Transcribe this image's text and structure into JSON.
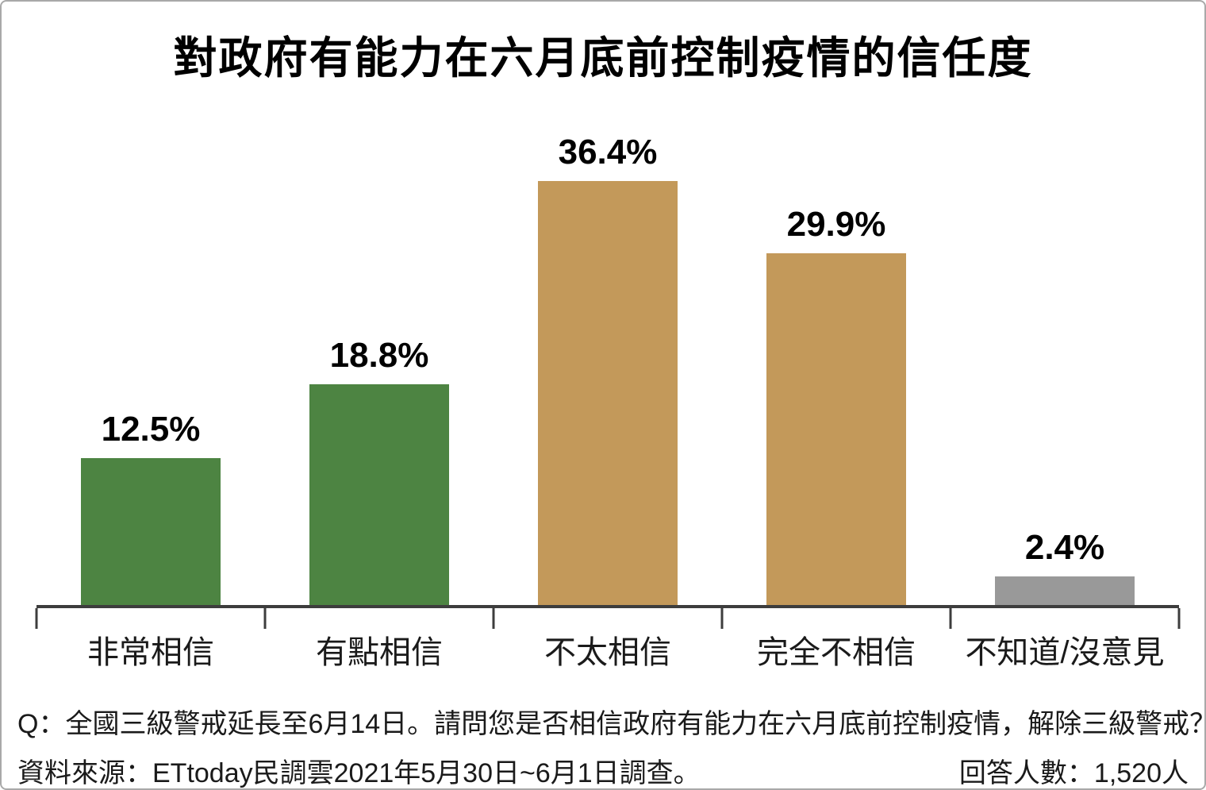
{
  "title": "對政府有能力在六月底前控制疫情的信任度",
  "chart_data": {
    "type": "bar",
    "title": "對政府有能力在六月底前控制疫情的信任度",
    "categories": [
      "非常相信",
      "有點相信",
      "不太相信",
      "完全不相信",
      "不知道/沒意見"
    ],
    "values": [
      12.5,
      18.8,
      36.4,
      29.9,
      2.4
    ],
    "value_labels": [
      "12.5%",
      "18.8%",
      "36.4%",
      "29.9%",
      "2.4%"
    ],
    "bar_colors": [
      "#4d8442",
      "#4d8442",
      "#c3995a",
      "#c3995a",
      "#999999"
    ],
    "xlabel": "",
    "ylabel": "",
    "ylim": [
      0,
      40
    ],
    "grid": false,
    "legend": "none",
    "axis_color": "#3d3d3d"
  },
  "footer": {
    "question": "Q：全國三級警戒延長至6月14日。請問您是否相信政府有能力在六月底前控制疫情，解除三級警戒？",
    "source": "資料來源：ETtoday民調雲2021年5月30日~6月1日調查。",
    "respondents": "回答人數：1,520人"
  },
  "colors": {
    "green": "#4d8442",
    "tan": "#c3995a",
    "gray": "#999999",
    "axis": "#3d3d3d",
    "text": "#1a1a1a",
    "frame_border": "#a9a9a9"
  }
}
